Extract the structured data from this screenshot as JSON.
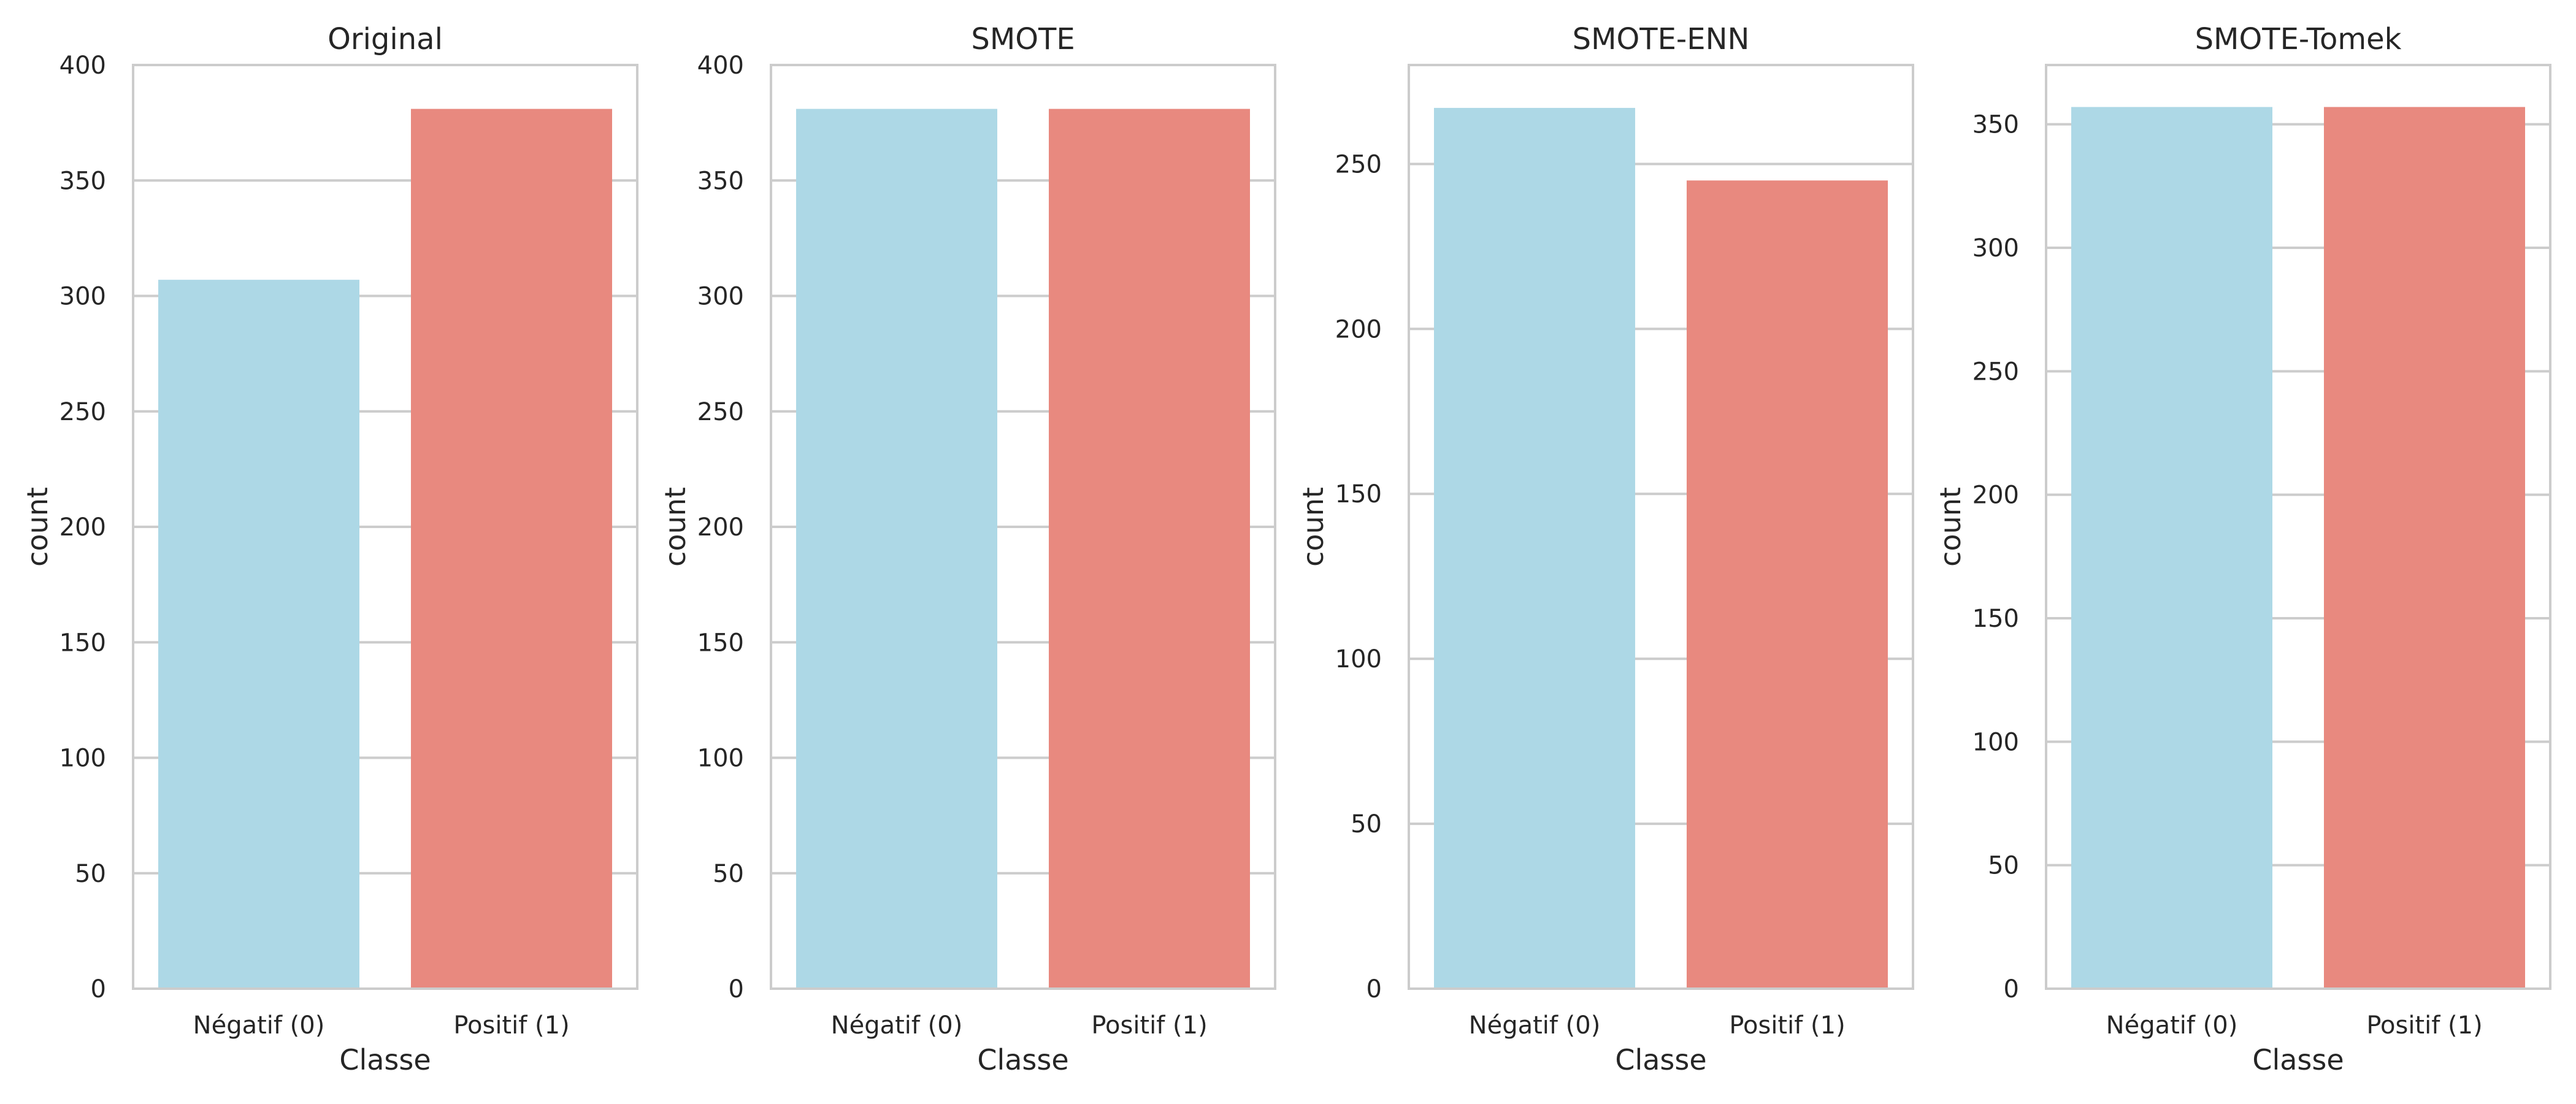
{
  "colors": {
    "negative": "#add8e6",
    "positive": "#e8897f",
    "grid": "#cccccc",
    "text": "#262626"
  },
  "chart_data": [
    {
      "type": "bar",
      "title": "Original",
      "xlabel": "Classe",
      "ylabel": "count",
      "categories": [
        "Négatif (0)",
        "Positif (1)"
      ],
      "values": [
        307,
        381
      ],
      "ylim": [
        0,
        400
      ],
      "yticks": [
        0,
        50,
        100,
        150,
        200,
        250,
        300,
        350,
        400
      ],
      "grid": true
    },
    {
      "type": "bar",
      "title": "SMOTE",
      "xlabel": "Classe",
      "ylabel": "count",
      "categories": [
        "Négatif (0)",
        "Positif (1)"
      ],
      "values": [
        381,
        381
      ],
      "ylim": [
        0,
        400
      ],
      "yticks": [
        0,
        50,
        100,
        150,
        200,
        250,
        300,
        350,
        400
      ],
      "grid": true
    },
    {
      "type": "bar",
      "title": "SMOTE-ENN",
      "xlabel": "Classe",
      "ylabel": "count",
      "categories": [
        "Négatif (0)",
        "Positif (1)"
      ],
      "values": [
        267,
        245
      ],
      "ylim": [
        0,
        280
      ],
      "yticks": [
        0,
        50,
        100,
        150,
        200,
        250
      ],
      "grid": true
    },
    {
      "type": "bar",
      "title": "SMOTE-Tomek",
      "xlabel": "Classe",
      "ylabel": "count",
      "categories": [
        "Négatif (0)",
        "Positif (1)"
      ],
      "values": [
        357,
        357
      ],
      "ylim": [
        0,
        374
      ],
      "yticks": [
        0,
        50,
        100,
        150,
        200,
        250,
        300,
        350
      ],
      "grid": true
    }
  ]
}
